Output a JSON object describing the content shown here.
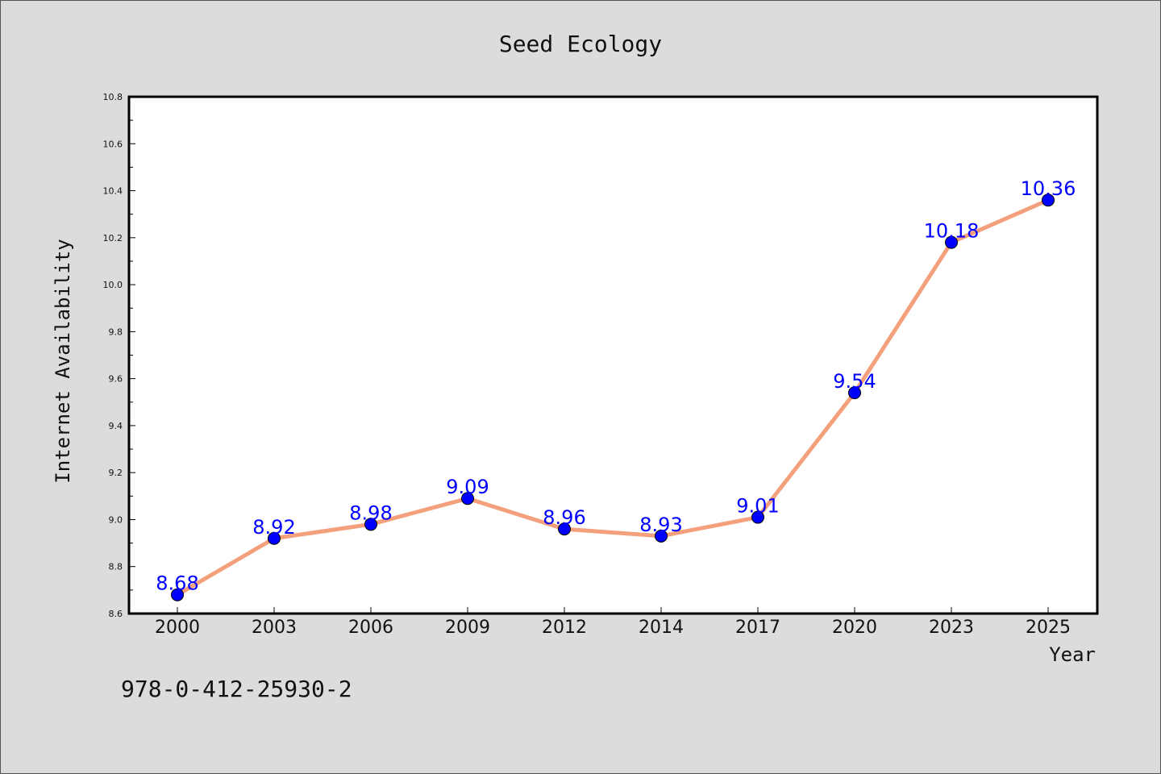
{
  "chart_data": {
    "type": "line",
    "title": "Seed Ecology",
    "xlabel": "Year",
    "ylabel": "Internet Availability",
    "categories": [
      "2000",
      "2003",
      "2006",
      "2009",
      "2012",
      "2014",
      "2017",
      "2020",
      "2023",
      "2025"
    ],
    "series": [
      {
        "values": [
          8.68,
          8.92,
          8.98,
          9.09,
          8.96,
          8.93,
          9.01,
          9.54,
          10.18,
          10.36
        ],
        "line_color": "#f4a07c",
        "marker_color": "#0000ff",
        "label_color": "#0000ff"
      }
    ],
    "data_labels": [
      "8.68",
      "8.92",
      "8.98",
      "9.09",
      "8.96",
      "8.93",
      "9.01",
      "9.54",
      "10.18",
      "10.36"
    ],
    "ylim": [
      8.6,
      10.8
    ],
    "yticks": [
      "8.6",
      "8.8",
      "9.0",
      "9.2",
      "9.4",
      "9.6",
      "9.8",
      "10.0",
      "10.2",
      "10.4",
      "10.6",
      "10.8"
    ],
    "grid": false,
    "legend": "none",
    "annotation": "978-0-412-25930-2"
  }
}
